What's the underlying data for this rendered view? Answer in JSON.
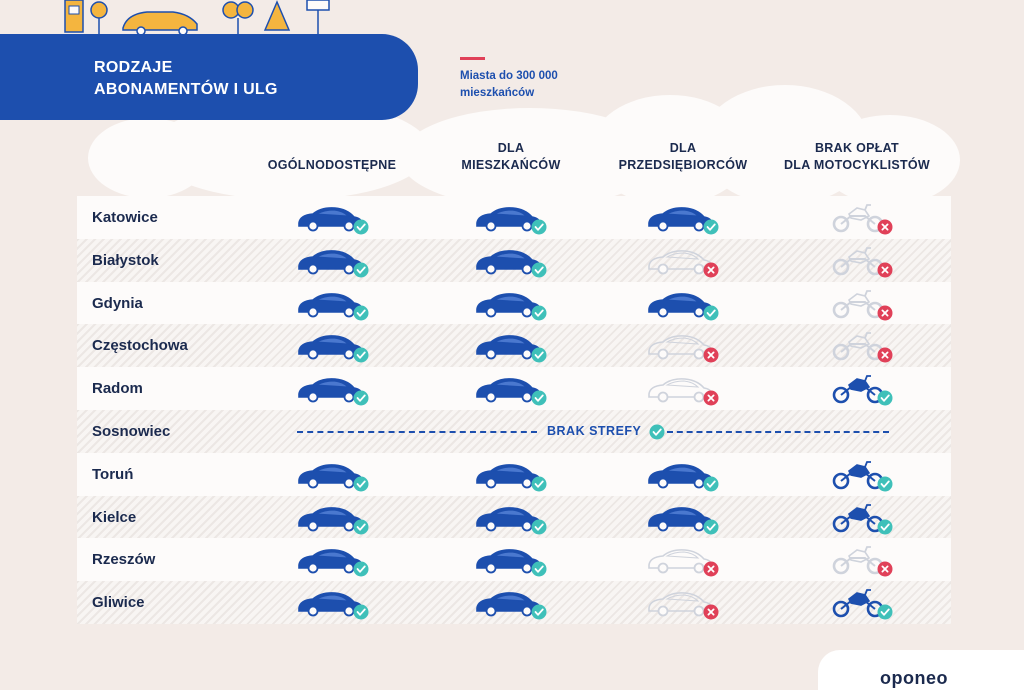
{
  "header": {
    "title_line1": "RODZAJE",
    "title_line2": "ABONAMENTÓW I ULG"
  },
  "legend": {
    "line1": "Miasta do 300 000",
    "line2": "mieszkańców",
    "accent_color": "#e04058"
  },
  "columns": [
    {
      "line1": "",
      "line2": "OGÓLNODOSTĘPNE"
    },
    {
      "line1": "DLA",
      "line2": "MIESZKAŃCÓW"
    },
    {
      "line1": "DLA",
      "line2": "PRZEDSIĘBIORCÓW"
    },
    {
      "line1": "BRAK OPŁAT",
      "line2": "DLA MOTOCYKLISTÓW"
    }
  ],
  "rows": [
    {
      "city": "Katowice",
      "general": true,
      "residents": true,
      "entrepreneurs": true,
      "motorcyclists": false
    },
    {
      "city": "Białystok",
      "general": true,
      "residents": true,
      "entrepreneurs": false,
      "motorcyclists": false
    },
    {
      "city": "Gdynia",
      "general": true,
      "residents": true,
      "entrepreneurs": true,
      "motorcyclists": false
    },
    {
      "city": "Częstochowa",
      "general": true,
      "residents": true,
      "entrepreneurs": false,
      "motorcyclists": false
    },
    {
      "city": "Radom",
      "general": true,
      "residents": true,
      "entrepreneurs": false,
      "motorcyclists": true
    },
    {
      "city": "Sosnowiec",
      "no_zone": true,
      "no_zone_label": "BRAK STREFY"
    },
    {
      "city": "Toruń",
      "general": true,
      "residents": true,
      "entrepreneurs": true,
      "motorcyclists": true
    },
    {
      "city": "Kielce",
      "general": true,
      "residents": true,
      "entrepreneurs": true,
      "motorcyclists": true
    },
    {
      "city": "Rzeszów",
      "general": true,
      "residents": true,
      "entrepreneurs": false,
      "motorcyclists": false
    },
    {
      "city": "Gliwice",
      "general": true,
      "residents": true,
      "entrepreneurs": false,
      "motorcyclists": true
    }
  ],
  "icons": {
    "car": "car-icon",
    "motorcycle": "motorcycle-icon",
    "yes": "check-badge-icon",
    "no": "cross-badge-icon"
  },
  "colors": {
    "brand_blue": "#1d4fae",
    "check_teal": "#3fc0b9",
    "cross_red": "#e04058",
    "inactive_gray": "#cfd3dc"
  },
  "footer": {
    "brand": "oponeo"
  }
}
